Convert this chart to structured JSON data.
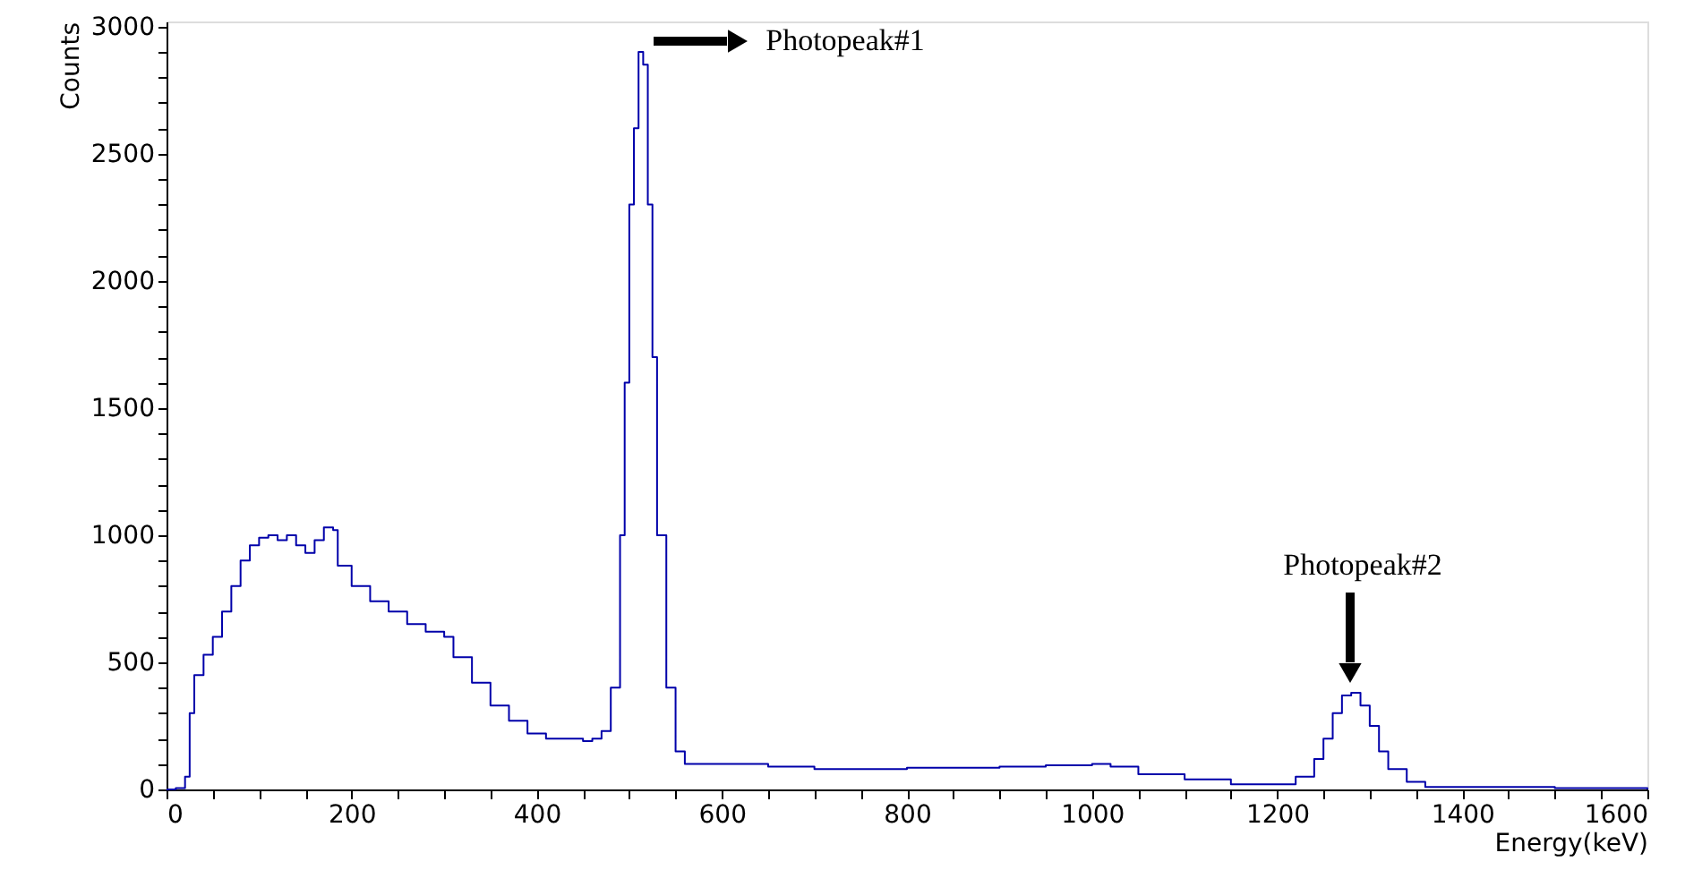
{
  "chart_data": {
    "type": "step",
    "xlabel": "Energy(keV)",
    "ylabel": "Counts",
    "x": [
      0,
      10,
      20,
      25,
      30,
      40,
      50,
      60,
      70,
      80,
      90,
      100,
      110,
      120,
      130,
      140,
      150,
      160,
      170,
      180,
      185,
      200,
      220,
      240,
      260,
      280,
      300,
      310,
      330,
      350,
      370,
      390,
      410,
      430,
      450,
      460,
      470,
      480,
      490,
      495,
      500,
      505,
      510,
      515,
      520,
      525,
      530,
      540,
      550,
      560,
      600,
      650,
      700,
      750,
      800,
      850,
      900,
      950,
      1000,
      1020,
      1050,
      1100,
      1150,
      1200,
      1220,
      1240,
      1250,
      1260,
      1270,
      1280,
      1290,
      1300,
      1310,
      1320,
      1340,
      1360,
      1400,
      1500,
      1600
    ],
    "series": [
      {
        "color": "#0000aa",
        "values": [
          0,
          5,
          50,
          300,
          450,
          530,
          600,
          700,
          800,
          900,
          960,
          990,
          1000,
          980,
          1000,
          960,
          930,
          980,
          1030,
          1020,
          880,
          800,
          740,
          700,
          650,
          620,
          600,
          520,
          420,
          330,
          270,
          220,
          200,
          200,
          190,
          200,
          230,
          400,
          1000,
          1600,
          2300,
          2600,
          2900,
          2850,
          2300,
          1700,
          1000,
          400,
          150,
          100,
          100,
          90,
          80,
          80,
          85,
          85,
          90,
          95,
          100,
          90,
          60,
          40,
          20,
          20,
          50,
          120,
          200,
          300,
          370,
          380,
          330,
          250,
          150,
          80,
          30,
          10,
          10,
          5,
          0
        ]
      }
    ],
    "xlim": [
      0,
      1600
    ],
    "ylim": [
      0,
      3020
    ],
    "xticks": [
      0,
      {
        "value": 50,
        "label": null
      },
      {
        "value": 100,
        "label": null
      },
      {
        "value": 150,
        "label": null
      },
      200,
      {
        "value": 250,
        "label": null
      },
      {
        "value": 300,
        "label": null
      },
      {
        "value": 350,
        "label": null
      },
      400,
      {
        "value": 450,
        "label": null
      },
      {
        "value": 500,
        "label": null
      },
      {
        "value": 550,
        "label": null
      },
      600,
      {
        "value": 650,
        "label": null
      },
      {
        "value": 700,
        "label": null
      },
      {
        "value": 750,
        "label": null
      },
      800,
      {
        "value": 850,
        "label": null
      },
      {
        "value": 900,
        "label": null
      },
      {
        "value": 950,
        "label": null
      },
      1000,
      {
        "value": 1050,
        "label": null
      },
      {
        "value": 1100,
        "label": null
      },
      {
        "value": 1150,
        "label": null
      },
      1200,
      {
        "value": 1250,
        "label": null
      },
      {
        "value": 1300,
        "label": null
      },
      {
        "value": 1350,
        "label": null
      },
      1400,
      {
        "value": 1450,
        "label": null
      },
      {
        "value": 1500,
        "label": null
      },
      {
        "value": 1550,
        "label": null
      },
      1600
    ],
    "yticks": [
      0,
      {
        "value": 100,
        "label": null
      },
      {
        "value": 200,
        "label": null
      },
      {
        "value": 300,
        "label": null
      },
      {
        "value": 400,
        "label": null
      },
      500,
      {
        "value": 600,
        "label": null
      },
      {
        "value": 700,
        "label": null
      },
      {
        "value": 800,
        "label": null
      },
      {
        "value": 900,
        "label": null
      },
      1000,
      {
        "value": 1100,
        "label": null
      },
      {
        "value": 1200,
        "label": null
      },
      {
        "value": 1300,
        "label": null
      },
      {
        "value": 1400,
        "label": null
      },
      1500,
      {
        "value": 1600,
        "label": null
      },
      {
        "value": 1700,
        "label": null
      },
      {
        "value": 1800,
        "label": null
      },
      {
        "value": 1900,
        "label": null
      },
      2000,
      {
        "value": 2100,
        "label": null
      },
      {
        "value": 2200,
        "label": null
      },
      {
        "value": 2300,
        "label": null
      },
      {
        "value": 2400,
        "label": null
      },
      2500,
      {
        "value": 2600,
        "label": null
      },
      {
        "value": 2700,
        "label": null
      },
      {
        "value": 2800,
        "label": null
      },
      {
        "value": 2900,
        "label": null
      },
      3000
    ],
    "annotations": [
      "Photopeak#1",
      "Photopeak#2"
    ],
    "grid": false,
    "marker": "none",
    "line_style": "solid"
  }
}
